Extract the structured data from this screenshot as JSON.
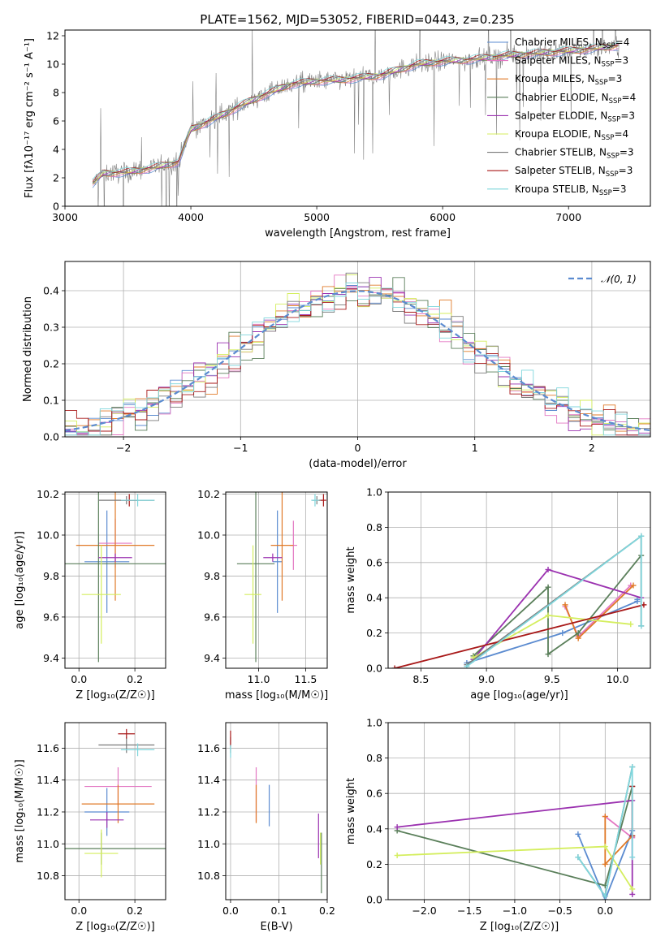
{
  "figure": {
    "title": "PLATE=1562, MJD=53052, FIBERID=0443, z=0.235"
  },
  "models": [
    {
      "name": "Chabrier MILES, N_SSP=4",
      "color": "#5b8bd0"
    },
    {
      "name": "Salpeter MILES, N_SSP=3",
      "color": "#e377c2"
    },
    {
      "name": "Kroupa MILES, N_SSP=3",
      "color": "#e07a28"
    },
    {
      "name": "Chabrier ELODIE, N_SSP=4",
      "color": "#5a7f5a"
    },
    {
      "name": "Salpeter ELODIE, N_SSP=3",
      "color": "#9b32b0"
    },
    {
      "name": "Kroupa ELODIE, N_SSP=4",
      "color": "#d4ee5e"
    },
    {
      "name": "Chabrier STELIB, N_SSP=3",
      "color": "#7a7a7a"
    },
    {
      "name": "Salpeter STELIB, N_SSP=3",
      "color": "#a81818"
    },
    {
      "name": "Kroupa STELIB, N_SSP=3",
      "color": "#7fd6dc"
    }
  ],
  "chart_data": [
    {
      "id": "spectrum",
      "type": "line",
      "xlabel": "wavelength [Angstrom, rest frame]",
      "ylabel": "Flux [fλ10⁻¹⁷ erg cm⁻² s⁻¹ A⁻¹]",
      "xlim": [
        3000,
        7650
      ],
      "ylim": [
        0,
        12.4
      ],
      "xticks": [
        3000,
        4000,
        5000,
        6000,
        7000
      ],
      "yticks": [
        0,
        2,
        4,
        6,
        8,
        10,
        12
      ],
      "grid": false,
      "legend": "right",
      "data_range": [
        3220,
        7400
      ],
      "continuum": [
        [
          3220,
          1.6
        ],
        [
          3300,
          2.3
        ],
        [
          3500,
          2.4
        ],
        [
          3700,
          2.7
        ],
        [
          3900,
          3.1
        ],
        [
          4000,
          5.4
        ],
        [
          4200,
          6.2
        ],
        [
          4400,
          7.1
        ],
        [
          4600,
          7.9
        ],
        [
          4800,
          8.6
        ],
        [
          5000,
          8.8
        ],
        [
          5200,
          8.9
        ],
        [
          5500,
          9.2
        ],
        [
          5800,
          10.0
        ],
        [
          6000,
          10.2
        ],
        [
          6200,
          10.3
        ],
        [
          6500,
          10.6
        ],
        [
          6800,
          10.8
        ],
        [
          7100,
          11.0
        ],
        [
          7400,
          11.3
        ]
      ]
    },
    {
      "id": "residual_hist",
      "type": "step",
      "xlabel": "(data-model)/error",
      "ylabel": "Normed distribution",
      "xlim": [
        -2.5,
        2.5
      ],
      "ylim": [
        0,
        0.48
      ],
      "xticks": [
        -2,
        -1,
        0,
        1,
        2
      ],
      "yticks": [
        0.0,
        0.1,
        0.2,
        0.3,
        0.4
      ],
      "grid": true,
      "legend": "top-right",
      "reference_label": "𝒩(0, 1)",
      "reference_color": "#5b8bd0",
      "bin_width": 0.1
    },
    {
      "id": "age_vs_Z",
      "type": "errorbar",
      "xlabel": "Z [log₁₀(Z/Z☉)]",
      "ylabel": "age  [log₁₀(age/yr)]",
      "xlim": [
        -0.05,
        0.31
      ],
      "ylim": [
        9.35,
        10.21
      ],
      "xticks": [
        0.0,
        0.2
      ],
      "yticks": [
        9.4,
        9.6,
        9.8,
        10.0,
        10.2
      ],
      "grid": true,
      "points": [
        {
          "x": 0.1,
          "xerr": 0.08,
          "y": 9.87,
          "yerr": 0.25,
          "model": 0
        },
        {
          "x": 0.13,
          "xerr": 0.06,
          "y": 9.96,
          "yerr": 0.12,
          "model": 1
        },
        {
          "x": 0.13,
          "xerr": 0.14,
          "y": 9.95,
          "yerr": 0.27,
          "model": 2
        },
        {
          "x": 0.07,
          "xerr": 0.24,
          "y": 9.86,
          "yerr": 0.48,
          "model": 3
        },
        {
          "x": 0.13,
          "xerr": 0.06,
          "y": 9.89,
          "yerr": 0.02,
          "model": 4
        },
        {
          "x": 0.08,
          "xerr": 0.07,
          "y": 9.71,
          "yerr": 0.24,
          "model": 5
        },
        {
          "x": 0.17,
          "xerr": 0.1,
          "y": 10.17,
          "yerr": 0.02,
          "model": 6
        },
        {
          "x": 0.18,
          "xerr": 0.03,
          "y": 10.17,
          "yerr": 0.03,
          "model": 7
        },
        {
          "x": 0.21,
          "xerr": 0.06,
          "y": 10.17,
          "yerr": 0.03,
          "model": 8
        }
      ]
    },
    {
      "id": "age_vs_mass",
      "type": "errorbar",
      "xlabel": "mass [log₁₀(M/M☉)]",
      "ylabel": "",
      "xlim": [
        10.65,
        11.73
      ],
      "ylim": [
        9.35,
        10.21
      ],
      "xticks": [
        11.0,
        11.5
      ],
      "yticks": [
        9.4,
        9.6,
        9.8,
        10.0,
        10.2
      ],
      "grid": true,
      "points": [
        {
          "x": 11.2,
          "xerr": 0.05,
          "y": 9.87,
          "yerr": 0.25,
          "model": 0
        },
        {
          "x": 11.37,
          "xerr": 0.04,
          "y": 9.95,
          "yerr": 0.12,
          "model": 1
        },
        {
          "x": 11.25,
          "xerr": 0.12,
          "y": 9.95,
          "yerr": 0.27,
          "model": 2
        },
        {
          "x": 10.97,
          "xerr": 0.2,
          "y": 9.86,
          "yerr": 0.48,
          "model": 3
        },
        {
          "x": 11.15,
          "xerr": 0.1,
          "y": 9.89,
          "yerr": 0.02,
          "model": 4
        },
        {
          "x": 10.94,
          "xerr": 0.09,
          "y": 9.71,
          "yerr": 0.24,
          "model": 5
        },
        {
          "x": 11.62,
          "xerr": 0.05,
          "y": 10.17,
          "yerr": 0.02,
          "model": 6
        },
        {
          "x": 11.69,
          "xerr": 0.03,
          "y": 10.17,
          "yerr": 0.03,
          "model": 7
        },
        {
          "x": 11.6,
          "xerr": 0.04,
          "y": 10.17,
          "yerr": 0.03,
          "model": 8
        }
      ]
    },
    {
      "id": "weight_vs_age",
      "type": "line",
      "xlabel": "age  [log₁₀(age/yr)]",
      "ylabel": "mass weight",
      "xlim": [
        8.25,
        10.25
      ],
      "ylim": [
        0,
        1
      ],
      "xticks": [
        8.5,
        9.0,
        9.5,
        10.0
      ],
      "yticks": [
        0.0,
        0.2,
        0.4,
        0.6,
        0.8,
        1.0
      ],
      "grid": true,
      "series": [
        {
          "model": 0,
          "points": [
            [
              8.85,
              0.03
            ],
            [
              9.58,
              0.2
            ],
            [
              10.15,
              0.38
            ],
            [
              10.15,
              0.39
            ]
          ]
        },
        {
          "model": 1,
          "points": [
            [
              9.6,
              0.35
            ],
            [
              9.7,
              0.18
            ],
            [
              10.1,
              0.47
            ]
          ]
        },
        {
          "model": 2,
          "points": [
            [
              9.6,
              0.36
            ],
            [
              9.7,
              0.17
            ],
            [
              10.12,
              0.47
            ]
          ]
        },
        {
          "model": 3,
          "points": [
            [
              8.9,
              0.07
            ],
            [
              9.47,
              0.46
            ],
            [
              9.47,
              0.08
            ],
            [
              9.7,
              0.2
            ],
            [
              10.18,
              0.64
            ]
          ]
        },
        {
          "model": 4,
          "points": [
            [
              8.9,
              0.05
            ],
            [
              9.47,
              0.56
            ],
            [
              10.18,
              0.4
            ]
          ]
        },
        {
          "model": 5,
          "points": [
            [
              8.9,
              0.06
            ],
            [
              9.47,
              0.3
            ],
            [
              10.1,
              0.25
            ]
          ]
        },
        {
          "model": 6,
          "points": [
            [
              8.85,
              0.02
            ],
            [
              10.18,
              0.75
            ],
            [
              10.18,
              0.24
            ]
          ]
        },
        {
          "model": 7,
          "points": [
            [
              8.3,
              0.0
            ],
            [
              10.2,
              0.36
            ]
          ]
        },
        {
          "model": 8,
          "points": [
            [
              8.85,
              0.01
            ],
            [
              10.18,
              0.75
            ],
            [
              10.18,
              0.24
            ]
          ]
        }
      ]
    },
    {
      "id": "mass_vs_Z",
      "type": "errorbar",
      "xlabel": "Z [log₁₀(Z/Z☉)]",
      "ylabel": "mass [log₁₀(M/M☉)]",
      "xlim": [
        -0.05,
        0.31
      ],
      "ylim": [
        10.65,
        11.76
      ],
      "xticks": [
        0.0,
        0.2
      ],
      "yticks": [
        10.8,
        11.0,
        11.2,
        11.4,
        11.6
      ],
      "grid": true,
      "points": [
        {
          "x": 0.1,
          "xerr": 0.08,
          "y": 11.2,
          "yerr": 0.15,
          "model": 0
        },
        {
          "x": 0.14,
          "xerr": 0.12,
          "y": 11.36,
          "yerr": 0.12,
          "model": 1
        },
        {
          "x": 0.14,
          "xerr": 0.13,
          "y": 11.25,
          "yerr": 0.12,
          "model": 2
        },
        {
          "x": 0.08,
          "xerr": 0.24,
          "y": 10.97,
          "yerr": 0.1,
          "model": 3
        },
        {
          "x": 0.1,
          "xerr": 0.06,
          "y": 11.15,
          "yerr": 0.05,
          "model": 4
        },
        {
          "x": 0.08,
          "xerr": 0.06,
          "y": 10.94,
          "yerr": 0.15,
          "model": 5
        },
        {
          "x": 0.17,
          "xerr": 0.1,
          "y": 11.62,
          "yerr": 0.05,
          "model": 6
        },
        {
          "x": 0.17,
          "xerr": 0.03,
          "y": 11.69,
          "yerr": 0.03,
          "model": 7
        },
        {
          "x": 0.21,
          "xerr": 0.06,
          "y": 11.59,
          "yerr": 0.04,
          "model": 8
        }
      ]
    },
    {
      "id": "mass_vs_ebv",
      "type": "errorbar",
      "xlabel": "E(B-V)",
      "ylabel": "",
      "xlim": [
        -0.01,
        0.2
      ],
      "ylim": [
        10.65,
        11.76
      ],
      "xticks": [
        0.0,
        0.1,
        0.2
      ],
      "yticks": [
        10.8,
        11.0,
        11.2,
        11.4,
        11.6
      ],
      "grid": true,
      "points": [
        {
          "x": 0.08,
          "xerr": 0,
          "y": 11.24,
          "yerr": 0.13,
          "model": 0
        },
        {
          "x": 0.053,
          "xerr": 0,
          "y": 11.31,
          "yerr": 0.17,
          "model": 1
        },
        {
          "x": 0.053,
          "xerr": 0,
          "y": 11.25,
          "yerr": 0.12,
          "model": 2
        },
        {
          "x": 0.188,
          "xerr": 0,
          "y": 10.88,
          "yerr": 0.19,
          "model": 3
        },
        {
          "x": 0.182,
          "xerr": 0,
          "y": 11.05,
          "yerr": 0.14,
          "model": 4
        },
        {
          "x": 0.186,
          "xerr": 0,
          "y": 10.97,
          "yerr": 0.1,
          "model": 5
        },
        {
          "x": 0.0,
          "xerr": 0,
          "y": 11.62,
          "yerr": 0.05,
          "model": 6
        },
        {
          "x": 0.0,
          "xerr": 0,
          "y": 11.66,
          "yerr": 0.05,
          "model": 7
        },
        {
          "x": 0.0,
          "xerr": 0,
          "y": 11.58,
          "yerr": 0.04,
          "model": 8
        }
      ]
    },
    {
      "id": "weight_vs_Z",
      "type": "line",
      "xlabel": "Z [log₁₀(Z/Z☉)]",
      "ylabel": "mass weight",
      "xlim": [
        -2.4,
        0.5
      ],
      "ylim": [
        0,
        1
      ],
      "xticks": [
        -2.0,
        -1.5,
        -1.0,
        -0.5,
        0.0
      ],
      "yticks": [
        0.0,
        0.2,
        0.4,
        0.6,
        0.8,
        1.0
      ],
      "grid": true,
      "series": [
        {
          "model": 0,
          "points": [
            [
              -0.3,
              0.37
            ],
            [
              0.0,
              0.0
            ],
            [
              0.3,
              0.39
            ]
          ]
        },
        {
          "model": 1,
          "points": [
            [
              0.0,
              0.47
            ],
            [
              0.3,
              0.35
            ]
          ]
        },
        {
          "model": 2,
          "points": [
            [
              0.0,
              0.47
            ],
            [
              0.0,
              0.2
            ],
            [
              0.3,
              0.36
            ]
          ]
        },
        {
          "model": 3,
          "points": [
            [
              -2.3,
              0.39
            ],
            [
              0.0,
              0.08
            ],
            [
              0.3,
              0.64
            ]
          ]
        },
        {
          "model": 4,
          "points": [
            [
              -2.3,
              0.41
            ],
            [
              0.3,
              0.56
            ],
            [
              0.3,
              0.03
            ]
          ]
        },
        {
          "model": 5,
          "points": [
            [
              -2.3,
              0.25
            ],
            [
              0.0,
              0.3
            ],
            [
              0.3,
              0.06
            ]
          ]
        },
        {
          "model": 6,
          "points": [
            [
              -0.3,
              0.24
            ],
            [
              0.0,
              0.02
            ],
            [
              0.3,
              0.75
            ]
          ]
        },
        {
          "model": 7,
          "points": [
            [
              0.3,
              0.64
            ],
            [
              0.3,
              0.36
            ]
          ]
        },
        {
          "model": 8,
          "points": [
            [
              -0.3,
              0.24
            ],
            [
              0.0,
              0.02
            ],
            [
              0.3,
              0.75
            ],
            [
              0.3,
              0.24
            ]
          ]
        }
      ]
    }
  ]
}
